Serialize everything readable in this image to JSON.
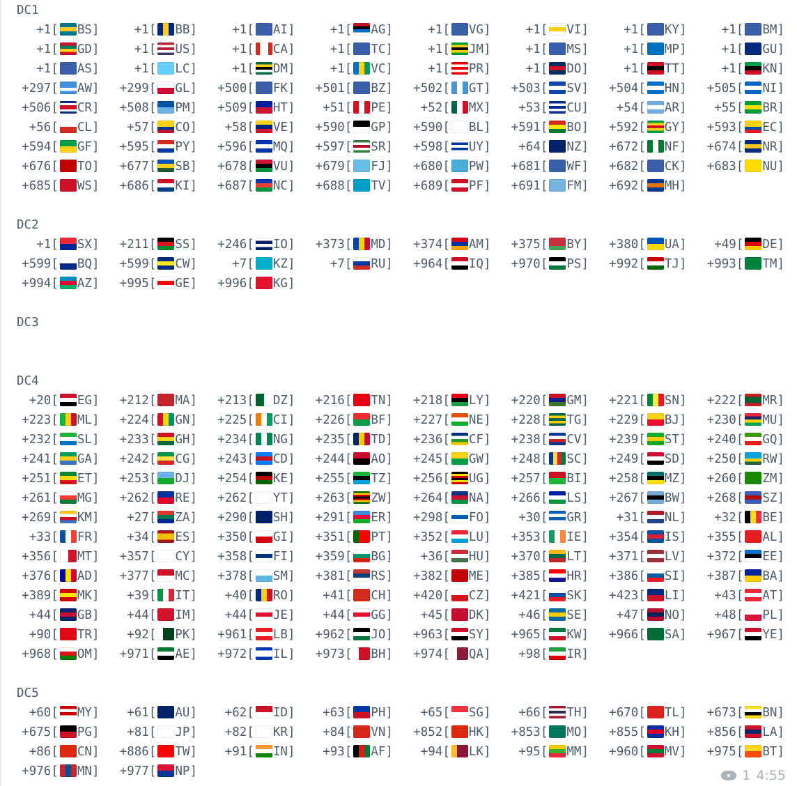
{
  "sections": [
    {
      "title": "DC1",
      "entries": [
        {
          "code": "+1",
          "cc": "BS"
        },
        {
          "code": "+1",
          "cc": "BB"
        },
        {
          "code": "+1",
          "cc": "AI"
        },
        {
          "code": "+1",
          "cc": "AG"
        },
        {
          "code": "+1",
          "cc": "VG"
        },
        {
          "code": "+1",
          "cc": "VI"
        },
        {
          "code": "+1",
          "cc": "KY"
        },
        {
          "code": "+1",
          "cc": "BM"
        },
        {
          "code": "+1",
          "cc": "GD"
        },
        {
          "code": "+1",
          "cc": "US"
        },
        {
          "code": "+1",
          "cc": "CA"
        },
        {
          "code": "+1",
          "cc": "TC"
        },
        {
          "code": "+1",
          "cc": "JM"
        },
        {
          "code": "+1",
          "cc": "MS"
        },
        {
          "code": "+1",
          "cc": "MP"
        },
        {
          "code": "+1",
          "cc": "GU"
        },
        {
          "code": "+1",
          "cc": "AS"
        },
        {
          "code": "+1",
          "cc": "LC"
        },
        {
          "code": "+1",
          "cc": "DM"
        },
        {
          "code": "+1",
          "cc": "VC"
        },
        {
          "code": "+1",
          "cc": "PR"
        },
        {
          "code": "+1",
          "cc": "DO"
        },
        {
          "code": "+1",
          "cc": "TT"
        },
        {
          "code": "+1",
          "cc": "KN"
        },
        {
          "code": "+297",
          "cc": "AW"
        },
        {
          "code": "+299",
          "cc": "GL"
        },
        {
          "code": "+500",
          "cc": "FK"
        },
        {
          "code": "+501",
          "cc": "BZ"
        },
        {
          "code": "+502",
          "cc": "GT"
        },
        {
          "code": "+503",
          "cc": "SV"
        },
        {
          "code": "+504",
          "cc": "HN"
        },
        {
          "code": "+505",
          "cc": "NI"
        },
        {
          "code": "+506",
          "cc": "CR"
        },
        {
          "code": "+508",
          "cc": "PM"
        },
        {
          "code": "+509",
          "cc": "HT"
        },
        {
          "code": "+51",
          "cc": "PE"
        },
        {
          "code": "+52",
          "cc": "MX"
        },
        {
          "code": "+53",
          "cc": "CU"
        },
        {
          "code": "+54",
          "cc": "AR"
        },
        {
          "code": "+55",
          "cc": "BR"
        },
        {
          "code": "+56",
          "cc": "CL"
        },
        {
          "code": "+57",
          "cc": "CO"
        },
        {
          "code": "+58",
          "cc": "VE"
        },
        {
          "code": "+590",
          "cc": "GP"
        },
        {
          "code": "+590",
          "cc": "BL"
        },
        {
          "code": "+591",
          "cc": "BO"
        },
        {
          "code": "+592",
          "cc": "GY"
        },
        {
          "code": "+593",
          "cc": "EC"
        },
        {
          "code": "+594",
          "cc": "GF"
        },
        {
          "code": "+595",
          "cc": "PY"
        },
        {
          "code": "+596",
          "cc": "MQ"
        },
        {
          "code": "+597",
          "cc": "SR"
        },
        {
          "code": "+598",
          "cc": "UY"
        },
        {
          "code": "+64",
          "cc": "NZ"
        },
        {
          "code": "+672",
          "cc": "NF"
        },
        {
          "code": "+674",
          "cc": "NR"
        },
        {
          "code": "+676",
          "cc": "TO"
        },
        {
          "code": "+677",
          "cc": "SB"
        },
        {
          "code": "+678",
          "cc": "VU"
        },
        {
          "code": "+679",
          "cc": "FJ"
        },
        {
          "code": "+680",
          "cc": "PW"
        },
        {
          "code": "+681",
          "cc": "WF"
        },
        {
          "code": "+682",
          "cc": "CK"
        },
        {
          "code": "+683",
          "cc": "NU"
        },
        {
          "code": "+685",
          "cc": "WS"
        },
        {
          "code": "+686",
          "cc": "KI"
        },
        {
          "code": "+687",
          "cc": "NC"
        },
        {
          "code": "+688",
          "cc": "TV"
        },
        {
          "code": "+689",
          "cc": "PF"
        },
        {
          "code": "+691",
          "cc": "FM"
        },
        {
          "code": "+692",
          "cc": "MH"
        }
      ]
    },
    {
      "title": "DC2",
      "entries": [
        {
          "code": "+1",
          "cc": "SX"
        },
        {
          "code": "+211",
          "cc": "SS"
        },
        {
          "code": "+246",
          "cc": "IO"
        },
        {
          "code": "+373",
          "cc": "MD"
        },
        {
          "code": "+374",
          "cc": "AM"
        },
        {
          "code": "+375",
          "cc": "BY"
        },
        {
          "code": "+380",
          "cc": "UA"
        },
        {
          "code": "+49",
          "cc": "DE"
        },
        {
          "code": "+599",
          "cc": "BQ"
        },
        {
          "code": "+599",
          "cc": "CW"
        },
        {
          "code": "+7",
          "cc": "KZ"
        },
        {
          "code": "+7",
          "cc": "RU"
        },
        {
          "code": "+964",
          "cc": "IQ"
        },
        {
          "code": "+970",
          "cc": "PS"
        },
        {
          "code": "+992",
          "cc": "TJ"
        },
        {
          "code": "+993",
          "cc": "TM"
        },
        {
          "code": "+994",
          "cc": "AZ"
        },
        {
          "code": "+995",
          "cc": "GE"
        },
        {
          "code": "+996",
          "cc": "KG"
        }
      ]
    },
    {
      "title": "DC3",
      "entries": []
    },
    {
      "title": "DC4",
      "entries": [
        {
          "code": "+20",
          "cc": "EG"
        },
        {
          "code": "+212",
          "cc": "MA"
        },
        {
          "code": "+213",
          "cc": "DZ"
        },
        {
          "code": "+216",
          "cc": "TN"
        },
        {
          "code": "+218",
          "cc": "LY"
        },
        {
          "code": "+220",
          "cc": "GM"
        },
        {
          "code": "+221",
          "cc": "SN"
        },
        {
          "code": "+222",
          "cc": "MR"
        },
        {
          "code": "+223",
          "cc": "ML"
        },
        {
          "code": "+224",
          "cc": "GN"
        },
        {
          "code": "+225",
          "cc": "CI"
        },
        {
          "code": "+226",
          "cc": "BF"
        },
        {
          "code": "+227",
          "cc": "NE"
        },
        {
          "code": "+228",
          "cc": "TG"
        },
        {
          "code": "+229",
          "cc": "BJ"
        },
        {
          "code": "+230",
          "cc": "MU"
        },
        {
          "code": "+232",
          "cc": "SL"
        },
        {
          "code": "+233",
          "cc": "GH"
        },
        {
          "code": "+234",
          "cc": "NG"
        },
        {
          "code": "+235",
          "cc": "TD"
        },
        {
          "code": "+236",
          "cc": "CF"
        },
        {
          "code": "+238",
          "cc": "CV"
        },
        {
          "code": "+239",
          "cc": "ST"
        },
        {
          "code": "+240",
          "cc": "GQ"
        },
        {
          "code": "+241",
          "cc": "GA"
        },
        {
          "code": "+242",
          "cc": "CG"
        },
        {
          "code": "+243",
          "cc": "CD"
        },
        {
          "code": "+244",
          "cc": "AO"
        },
        {
          "code": "+245",
          "cc": "GW"
        },
        {
          "code": "+248",
          "cc": "SC"
        },
        {
          "code": "+249",
          "cc": "SD"
        },
        {
          "code": "+250",
          "cc": "RW"
        },
        {
          "code": "+251",
          "cc": "ET"
        },
        {
          "code": "+253",
          "cc": "DJ"
        },
        {
          "code": "+254",
          "cc": "KE"
        },
        {
          "code": "+255",
          "cc": "TZ"
        },
        {
          "code": "+256",
          "cc": "UG"
        },
        {
          "code": "+257",
          "cc": "BI"
        },
        {
          "code": "+258",
          "cc": "MZ"
        },
        {
          "code": "+260",
          "cc": "ZM"
        },
        {
          "code": "+261",
          "cc": "MG"
        },
        {
          "code": "+262",
          "cc": "RE"
        },
        {
          "code": "+262",
          "cc": "YT"
        },
        {
          "code": "+263",
          "cc": "ZW"
        },
        {
          "code": "+264",
          "cc": "NA"
        },
        {
          "code": "+266",
          "cc": "LS"
        },
        {
          "code": "+267",
          "cc": "BW"
        },
        {
          "code": "+268",
          "cc": "SZ"
        },
        {
          "code": "+269",
          "cc": "KM"
        },
        {
          "code": "+27",
          "cc": "ZA"
        },
        {
          "code": "+290",
          "cc": "SH"
        },
        {
          "code": "+291",
          "cc": "ER"
        },
        {
          "code": "+298",
          "cc": "FO"
        },
        {
          "code": "+30",
          "cc": "GR"
        },
        {
          "code": "+31",
          "cc": "NL"
        },
        {
          "code": "+32",
          "cc": "BE"
        },
        {
          "code": "+33",
          "cc": "FR"
        },
        {
          "code": "+34",
          "cc": "ES"
        },
        {
          "code": "+350",
          "cc": "GI"
        },
        {
          "code": "+351",
          "cc": "PT"
        },
        {
          "code": "+352",
          "cc": "LU"
        },
        {
          "code": "+353",
          "cc": "IE"
        },
        {
          "code": "+354",
          "cc": "IS"
        },
        {
          "code": "+355",
          "cc": "AL"
        },
        {
          "code": "+356",
          "cc": "MT"
        },
        {
          "code": "+357",
          "cc": "CY"
        },
        {
          "code": "+358",
          "cc": "FI"
        },
        {
          "code": "+359",
          "cc": "BG"
        },
        {
          "code": "+36",
          "cc": "HU"
        },
        {
          "code": "+370",
          "cc": "LT"
        },
        {
          "code": "+371",
          "cc": "LV"
        },
        {
          "code": "+372",
          "cc": "EE"
        },
        {
          "code": "+376",
          "cc": "AD"
        },
        {
          "code": "+377",
          "cc": "MC"
        },
        {
          "code": "+378",
          "cc": "SM"
        },
        {
          "code": "+381",
          "cc": "RS"
        },
        {
          "code": "+382",
          "cc": "ME"
        },
        {
          "code": "+385",
          "cc": "HR"
        },
        {
          "code": "+386",
          "cc": "SI"
        },
        {
          "code": "+387",
          "cc": "BA"
        },
        {
          "code": "+389",
          "cc": "MK"
        },
        {
          "code": "+39",
          "cc": "IT"
        },
        {
          "code": "+40",
          "cc": "RO"
        },
        {
          "code": "+41",
          "cc": "CH"
        },
        {
          "code": "+420",
          "cc": "CZ"
        },
        {
          "code": "+421",
          "cc": "SK"
        },
        {
          "code": "+423",
          "cc": "LI"
        },
        {
          "code": "+43",
          "cc": "AT"
        },
        {
          "code": "+44",
          "cc": "GB"
        },
        {
          "code": "+44",
          "cc": "IM"
        },
        {
          "code": "+44",
          "cc": "JE"
        },
        {
          "code": "+44",
          "cc": "GG"
        },
        {
          "code": "+45",
          "cc": "DK"
        },
        {
          "code": "+46",
          "cc": "SE"
        },
        {
          "code": "+47",
          "cc": "NO"
        },
        {
          "code": "+48",
          "cc": "PL"
        },
        {
          "code": "+90",
          "cc": "TR"
        },
        {
          "code": "+92",
          "cc": "PK"
        },
        {
          "code": "+961",
          "cc": "LB"
        },
        {
          "code": "+962",
          "cc": "JO"
        },
        {
          "code": "+963",
          "cc": "SY"
        },
        {
          "code": "+965",
          "cc": "KW"
        },
        {
          "code": "+966",
          "cc": "SA"
        },
        {
          "code": "+967",
          "cc": "YE"
        },
        {
          "code": "+968",
          "cc": "OM"
        },
        {
          "code": "+971",
          "cc": "AE"
        },
        {
          "code": "+972",
          "cc": "IL"
        },
        {
          "code": "+973",
          "cc": "BH"
        },
        {
          "code": "+974",
          "cc": "QA"
        },
        {
          "code": "+98",
          "cc": "IR"
        }
      ]
    },
    {
      "title": "DC5",
      "entries": [
        {
          "code": "+60",
          "cc": "MY"
        },
        {
          "code": "+61",
          "cc": "AU"
        },
        {
          "code": "+62",
          "cc": "ID"
        },
        {
          "code": "+63",
          "cc": "PH"
        },
        {
          "code": "+65",
          "cc": "SG"
        },
        {
          "code": "+66",
          "cc": "TH"
        },
        {
          "code": "+670",
          "cc": "TL"
        },
        {
          "code": "+673",
          "cc": "BN"
        },
        {
          "code": "+675",
          "cc": "PG"
        },
        {
          "code": "+81",
          "cc": "JP"
        },
        {
          "code": "+82",
          "cc": "KR"
        },
        {
          "code": "+84",
          "cc": "VN"
        },
        {
          "code": "+852",
          "cc": "HK"
        },
        {
          "code": "+853",
          "cc": "MO"
        },
        {
          "code": "+855",
          "cc": "KH"
        },
        {
          "code": "+856",
          "cc": "LA"
        },
        {
          "code": "+86",
          "cc": "CN"
        },
        {
          "code": "+886",
          "cc": "TW"
        },
        {
          "code": "+91",
          "cc": "IN"
        },
        {
          "code": "+93",
          "cc": "AF"
        },
        {
          "code": "+94",
          "cc": "LK"
        },
        {
          "code": "+95",
          "cc": "MM"
        },
        {
          "code": "+960",
          "cc": "MV"
        },
        {
          "code": "+975",
          "cc": "BT"
        },
        {
          "code": "+976",
          "cc": "MN"
        },
        {
          "code": "+977",
          "cc": "NP"
        }
      ]
    }
  ],
  "footer": {
    "views": "1",
    "time": "4:55",
    "icon": "eye-icon"
  },
  "colors": {
    "text": "#4d5c6b",
    "meta": "#a9b2bb"
  }
}
